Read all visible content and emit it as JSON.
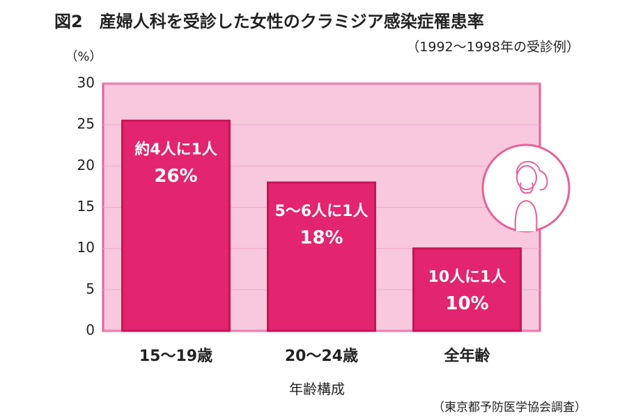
{
  "chart_data": {
    "type": "bar",
    "title": "図2　産婦人科を受診した女性のクラミジア感染症罹患率",
    "subtitle": "（1992〜1998年の受診例）",
    "y_label": "（%）",
    "x_label": "年齢構成",
    "source": "（東京都予防医学協会調査）",
    "categories": [
      "15〜19歳",
      "20〜24歳",
      "全年齢"
    ],
    "values": [
      25.5,
      18,
      10
    ],
    "value_labels": [
      "26%",
      "18%",
      "10%"
    ],
    "bar_notes": [
      "約4人に1人",
      "5〜6人に1人",
      "10人に1人"
    ],
    "color": "#e2256e",
    "ylim": [
      0,
      30
    ],
    "yticks": [
      0,
      5,
      10,
      15,
      20,
      25,
      30
    ],
    "grid": true
  }
}
